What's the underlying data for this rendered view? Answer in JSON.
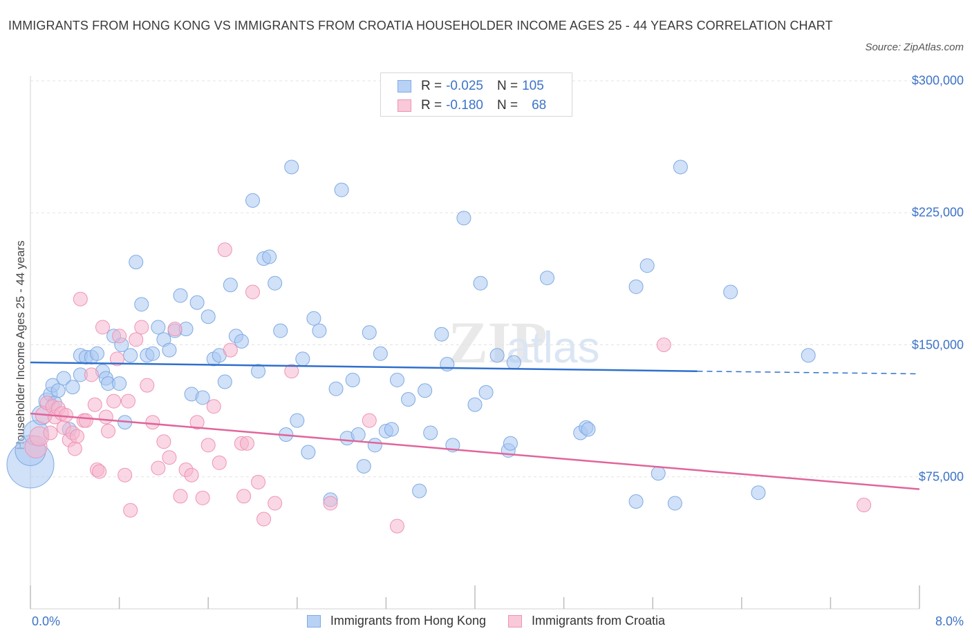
{
  "header": {
    "title": "IMMIGRANTS FROM HONG KONG VS IMMIGRANTS FROM CROATIA HOUSEHOLDER INCOME AGES 25 - 44 YEARS CORRELATION CHART",
    "source": "Source: ZipAtlas.com"
  },
  "legend_top": {
    "rows": [
      {
        "r_label": "R =",
        "r_value": "-0.025",
        "n_label": "N =",
        "n_value": "105"
      },
      {
        "r_label": "R =",
        "r_value": "-0.180",
        "n_label": "N =",
        "n_value": "68"
      }
    ]
  },
  "legend_bottom": [
    "Immigrants from Hong Kong",
    "Immigrants from Croatia"
  ],
  "colors": {
    "hongkong_fill": "#a9c8f3",
    "hongkong_stroke": "#7fa9e3",
    "hongkong_line": "#2f6fcc",
    "croatia_fill": "#f6b7cd",
    "croatia_stroke": "#ee93b4",
    "croatia_line": "#e0659a",
    "tick_text": "#3c73c8",
    "grid": "#e3e3e3"
  },
  "chart_data": {
    "type": "scatter",
    "title": "IMMIGRANTS FROM HONG KONG VS IMMIGRANTS FROM CROATIA HOUSEHOLDER INCOME AGES 25 - 44 YEARS CORRELATION CHART",
    "xlabel": "",
    "ylabel": "Householder Income Ages 25 - 44 years",
    "xlim": [
      0,
      8.0
    ],
    "ylim": [
      0,
      300000
    ],
    "x_tick_labels": [
      "0.0%",
      "8.0%"
    ],
    "y_ticks": [
      75000,
      150000,
      225000,
      300000
    ],
    "y_tick_labels": [
      "$75,000",
      "$150,000",
      "$225,000",
      "$300,000"
    ],
    "grid": true,
    "legend_position": "top-center",
    "watermark": "ZIPatlas",
    "series": [
      {
        "name": "Immigrants from Hong Kong",
        "R": -0.025,
        "N": 105,
        "trend": {
          "x": [
            0.0,
            6.0
          ],
          "y": [
            140000,
            135000
          ],
          "dashed_to": [
            8.0,
            133500
          ]
        },
        "points": [
          [
            0.0,
            82000,
            34
          ],
          [
            0.0,
            90000,
            22
          ],
          [
            0.05,
            100000,
            18
          ],
          [
            0.1,
            110000,
            14
          ],
          [
            0.15,
            118000,
            12
          ],
          [
            0.18,
            122000,
            10
          ],
          [
            0.2,
            127000,
            10
          ],
          [
            0.22,
            117000,
            10
          ],
          [
            0.25,
            124000,
            10
          ],
          [
            0.3,
            131000,
            10
          ],
          [
            0.35,
            102000,
            10
          ],
          [
            0.38,
            126000,
            10
          ],
          [
            0.45,
            133000,
            10
          ],
          [
            0.45,
            144000,
            10
          ],
          [
            0.5,
            143000,
            10
          ],
          [
            0.55,
            143000,
            10
          ],
          [
            0.6,
            145000,
            10
          ],
          [
            0.65,
            135000,
            10
          ],
          [
            0.68,
            131000,
            10
          ],
          [
            0.7,
            128000,
            10
          ],
          [
            0.75,
            155000,
            10
          ],
          [
            0.8,
            128000,
            10
          ],
          [
            0.82,
            150000,
            10
          ],
          [
            0.85,
            106000,
            10
          ],
          [
            0.9,
            144000,
            10
          ],
          [
            0.95,
            197000,
            10
          ],
          [
            1.0,
            173000,
            10
          ],
          [
            1.05,
            144000,
            10
          ],
          [
            1.1,
            145000,
            10
          ],
          [
            1.15,
            160000,
            10
          ],
          [
            1.2,
            153000,
            10
          ],
          [
            1.25,
            147000,
            10
          ],
          [
            1.3,
            158000,
            10
          ],
          [
            1.35,
            178000,
            10
          ],
          [
            1.4,
            159000,
            10
          ],
          [
            1.45,
            122000,
            10
          ],
          [
            1.5,
            174000,
            10
          ],
          [
            1.55,
            120000,
            10
          ],
          [
            1.6,
            166000,
            10
          ],
          [
            1.65,
            142000,
            10
          ],
          [
            1.7,
            144000,
            10
          ],
          [
            1.75,
            129000,
            10
          ],
          [
            1.8,
            184000,
            10
          ],
          [
            1.85,
            155000,
            10
          ],
          [
            1.9,
            152000,
            10
          ],
          [
            2.0,
            232000,
            10
          ],
          [
            2.05,
            135000,
            10
          ],
          [
            2.1,
            199000,
            10
          ],
          [
            2.15,
            200000,
            10
          ],
          [
            2.2,
            185000,
            10
          ],
          [
            2.25,
            158000,
            10
          ],
          [
            2.3,
            99000,
            10
          ],
          [
            2.35,
            251000,
            10
          ],
          [
            2.4,
            107000,
            10
          ],
          [
            2.45,
            142000,
            10
          ],
          [
            2.5,
            89000,
            10
          ],
          [
            2.55,
            165000,
            10
          ],
          [
            2.6,
            158000,
            10
          ],
          [
            2.7,
            62000,
            10
          ],
          [
            2.75,
            125000,
            10
          ],
          [
            2.8,
            238000,
            10
          ],
          [
            2.85,
            97000,
            10
          ],
          [
            2.9,
            130000,
            10
          ],
          [
            2.95,
            99000,
            10
          ],
          [
            3.0,
            81000,
            10
          ],
          [
            3.05,
            157000,
            10
          ],
          [
            3.1,
            93000,
            10
          ],
          [
            3.15,
            145000,
            10
          ],
          [
            3.2,
            101000,
            10
          ],
          [
            3.25,
            102000,
            10
          ],
          [
            3.3,
            130000,
            10
          ],
          [
            3.4,
            119000,
            10
          ],
          [
            3.5,
            67000,
            10
          ],
          [
            3.55,
            124000,
            10
          ],
          [
            3.6,
            100000,
            10
          ],
          [
            3.7,
            156000,
            10
          ],
          [
            3.75,
            139000,
            10
          ],
          [
            3.8,
            93000,
            10
          ],
          [
            3.9,
            222000,
            10
          ],
          [
            4.0,
            116000,
            10
          ],
          [
            4.05,
            185000,
            10
          ],
          [
            4.1,
            123000,
            10
          ],
          [
            4.2,
            144000,
            10
          ],
          [
            4.3,
            90000,
            10
          ],
          [
            4.32,
            94000,
            10
          ],
          [
            4.35,
            140000,
            10
          ],
          [
            4.65,
            188000,
            10
          ],
          [
            4.95,
            100000,
            10
          ],
          [
            5.0,
            103000,
            10
          ],
          [
            5.02,
            102000,
            10
          ],
          [
            5.45,
            61000,
            10
          ],
          [
            5.45,
            183000,
            10
          ],
          [
            5.55,
            195000,
            10
          ],
          [
            5.65,
            77000,
            10
          ],
          [
            5.8,
            60000,
            10
          ],
          [
            5.85,
            251000,
            10
          ],
          [
            6.3,
            180000,
            10
          ],
          [
            6.55,
            66000,
            10
          ],
          [
            7.0,
            144000,
            10
          ]
        ]
      },
      {
        "name": "Immigrants from Croatia",
        "R": -0.18,
        "N": 68,
        "trend": {
          "x": [
            0.0,
            8.0
          ],
          "y": [
            111000,
            68000
          ]
        },
        "points": [
          [
            0.05,
            92000,
            16
          ],
          [
            0.08,
            98000,
            14
          ],
          [
            0.12,
            110000,
            12
          ],
          [
            0.15,
            117000,
            10
          ],
          [
            0.18,
            100000,
            10
          ],
          [
            0.2,
            115000,
            10
          ],
          [
            0.22,
            109000,
            10
          ],
          [
            0.25,
            114000,
            10
          ],
          [
            0.28,
            111000,
            10
          ],
          [
            0.3,
            103000,
            10
          ],
          [
            0.32,
            110000,
            10
          ],
          [
            0.35,
            96000,
            10
          ],
          [
            0.38,
            100000,
            10
          ],
          [
            0.4,
            91000,
            10
          ],
          [
            0.42,
            98000,
            10
          ],
          [
            0.45,
            176000,
            10
          ],
          [
            0.48,
            107000,
            10
          ],
          [
            0.5,
            107000,
            10
          ],
          [
            0.55,
            133000,
            10
          ],
          [
            0.58,
            116000,
            10
          ],
          [
            0.6,
            79000,
            10
          ],
          [
            0.62,
            78000,
            10
          ],
          [
            0.65,
            160000,
            10
          ],
          [
            0.68,
            109000,
            10
          ],
          [
            0.7,
            101000,
            10
          ],
          [
            0.75,
            118000,
            10
          ],
          [
            0.78,
            142000,
            10
          ],
          [
            0.8,
            155000,
            10
          ],
          [
            0.85,
            76000,
            10
          ],
          [
            0.88,
            118000,
            10
          ],
          [
            0.9,
            56000,
            10
          ],
          [
            0.95,
            153000,
            10
          ],
          [
            1.0,
            160000,
            10
          ],
          [
            1.05,
            127000,
            10
          ],
          [
            1.1,
            106000,
            10
          ],
          [
            1.15,
            80000,
            10
          ],
          [
            1.2,
            95000,
            10
          ],
          [
            1.25,
            86000,
            10
          ],
          [
            1.3,
            159000,
            10
          ],
          [
            1.35,
            64000,
            10
          ],
          [
            1.4,
            79000,
            10
          ],
          [
            1.45,
            76000,
            10
          ],
          [
            1.5,
            106000,
            10
          ],
          [
            1.55,
            63000,
            10
          ],
          [
            1.6,
            93000,
            10
          ],
          [
            1.65,
            115000,
            10
          ],
          [
            1.7,
            83000,
            10
          ],
          [
            1.75,
            204000,
            10
          ],
          [
            1.8,
            147000,
            10
          ],
          [
            1.9,
            94000,
            10
          ],
          [
            1.92,
            64000,
            10
          ],
          [
            1.95,
            94000,
            10
          ],
          [
            2.0,
            180000,
            10
          ],
          [
            2.05,
            72000,
            10
          ],
          [
            2.1,
            51000,
            10
          ],
          [
            2.2,
            60000,
            10
          ],
          [
            2.35,
            135000,
            10
          ],
          [
            2.7,
            60000,
            10
          ],
          [
            3.05,
            107000,
            10
          ],
          [
            3.3,
            47000,
            10
          ],
          [
            5.7,
            150000,
            10
          ],
          [
            7.5,
            59000,
            10
          ]
        ]
      }
    ]
  }
}
